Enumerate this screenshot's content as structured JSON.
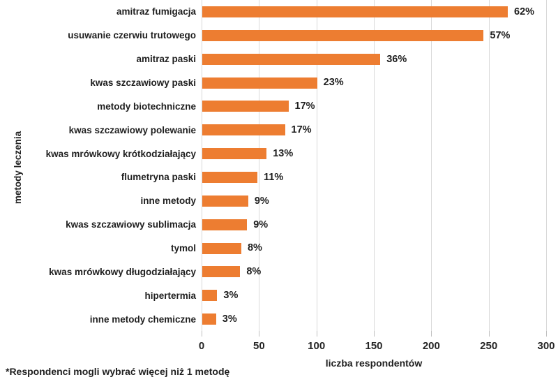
{
  "chart_data": {
    "type": "bar",
    "orientation": "horizontal",
    "title": "",
    "xlabel": "liczba respondentów",
    "ylabel": "metody leczenia",
    "xlim": [
      0,
      300
    ],
    "xticks": [
      "0",
      "50",
      "100",
      "150",
      "200",
      "250",
      "300"
    ],
    "grid": true,
    "legend": false,
    "bar_color": "#ED7D31",
    "gridline_color": "#D9D9D9",
    "categories": [
      "amitraz fumigacja",
      "usuwanie czerwiu trutowego",
      "amitraz paski",
      "kwas szczawiowy paski",
      "metody biotechniczne",
      "kwas szczawiowy polewanie",
      "kwas mrówkowy krótkodziałający",
      "flumetryna paski",
      "inne metody",
      "kwas szczawiowy sublimacja",
      "tymol",
      "kwas mrówkowy długodziałający",
      "hipertermia",
      "inne metody chemiczne"
    ],
    "values": [
      266,
      245,
      155,
      100,
      75,
      72,
      56,
      48,
      40,
      39,
      34,
      33,
      13,
      12
    ],
    "value_labels": [
      "62%",
      "57%",
      "36%",
      "23%",
      "17%",
      "17%",
      "13%",
      "11%",
      "9%",
      "9%",
      "8%",
      "8%",
      "3%",
      "3%"
    ],
    "footnote": "*Respondenci mogli wybrać więcej niż 1 metodę"
  }
}
